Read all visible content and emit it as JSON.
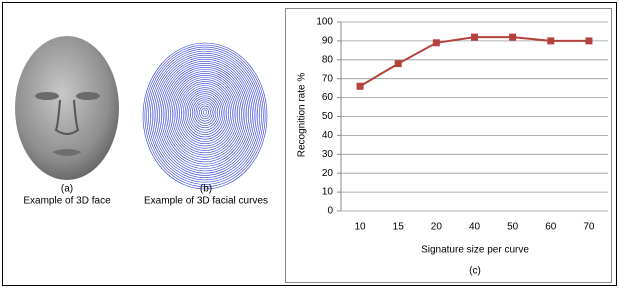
{
  "panels": [
    {
      "label": "(a)",
      "caption": "Example of 3D face"
    },
    {
      "label": "(b)",
      "caption": "Example of 3D facial curves"
    }
  ],
  "chart_data": {
    "type": "line",
    "panel_label": "(c)",
    "x_label": "Signature size per curve",
    "y_label": "Recognition rate %",
    "categories": [
      "10",
      "15",
      "20",
      "40",
      "50",
      "60",
      "70"
    ],
    "values": [
      66,
      78,
      89,
      92,
      92,
      90,
      90
    ],
    "color": "#b5413e",
    "ylim": [
      0,
      100
    ],
    "yticks": [
      0,
      10,
      20,
      30,
      40,
      50,
      60,
      70,
      80,
      90,
      100
    ],
    "grid": true
  }
}
